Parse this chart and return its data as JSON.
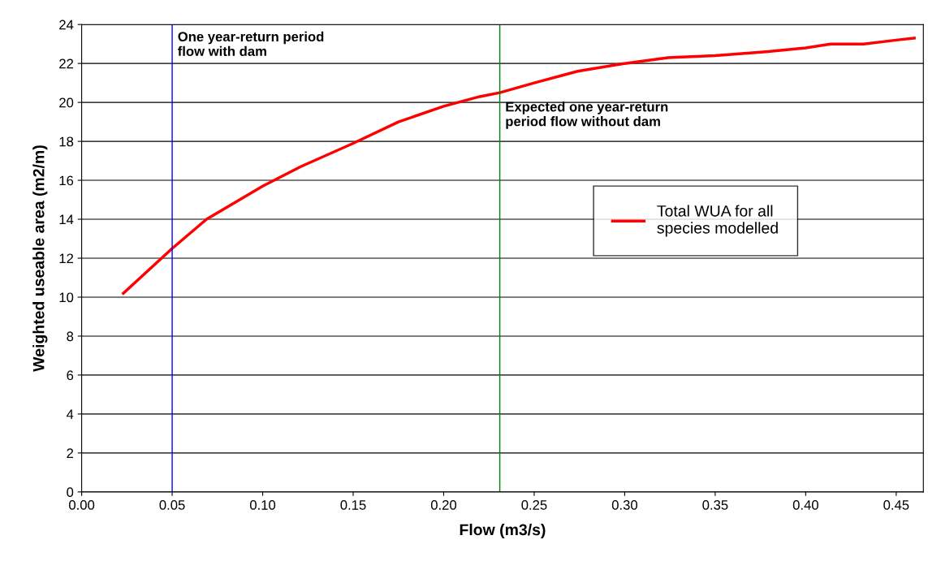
{
  "chart_data": {
    "type": "line",
    "xlabel": "Flow (m3/s)",
    "ylabel": "Weighted useable area (m2/m)",
    "xlim": [
      0,
      0.465
    ],
    "xticks": [
      {
        "value": 0,
        "label": "0.00"
      },
      {
        "value": 0.05,
        "label": "0.05"
      },
      {
        "value": 0.1,
        "label": "0.10"
      },
      {
        "value": 0.15,
        "label": "0.15"
      },
      {
        "value": 0.2,
        "label": "0.20"
      },
      {
        "value": 0.25,
        "label": "0.25"
      },
      {
        "value": 0.3,
        "label": "0.30"
      },
      {
        "value": 0.35,
        "label": "0.35"
      },
      {
        "value": 0.4,
        "label": "0.40"
      },
      {
        "value": 0.45,
        "label": "0.45"
      }
    ],
    "ylim": [
      0,
      24
    ],
    "yticks": [
      0,
      2,
      4,
      6,
      8,
      10,
      12,
      14,
      16,
      18,
      20,
      22,
      24
    ],
    "grid": "y",
    "legend": "right",
    "marker": "none",
    "line_style": "solid",
    "series": [
      {
        "name": "Total WUA for all species modelled",
        "color": "#ff0000",
        "x": [
          0.023,
          0.05,
          0.069,
          0.1,
          0.121,
          0.15,
          0.175,
          0.2,
          0.22,
          0.231,
          0.25,
          0.274,
          0.3,
          0.324,
          0.35,
          0.378,
          0.4,
          0.414,
          0.432,
          0.45,
          0.46
        ],
        "values": [
          10.2,
          12.5,
          14.0,
          15.7,
          16.7,
          17.9,
          19.0,
          19.8,
          20.3,
          20.5,
          21.0,
          21.6,
          22.0,
          22.3,
          22.4,
          22.6,
          22.8,
          23.0,
          23.0,
          23.2,
          23.3
        ]
      }
    ],
    "ref_lines": [
      {
        "axis": "x",
        "value": 0.05,
        "label": "One year-return period\nflow with dam",
        "color": "#0000ff"
      },
      {
        "axis": "x",
        "value": 0.231,
        "label": "Expected one year-return\nperiod flow without dam",
        "color": "#008000"
      }
    ]
  }
}
